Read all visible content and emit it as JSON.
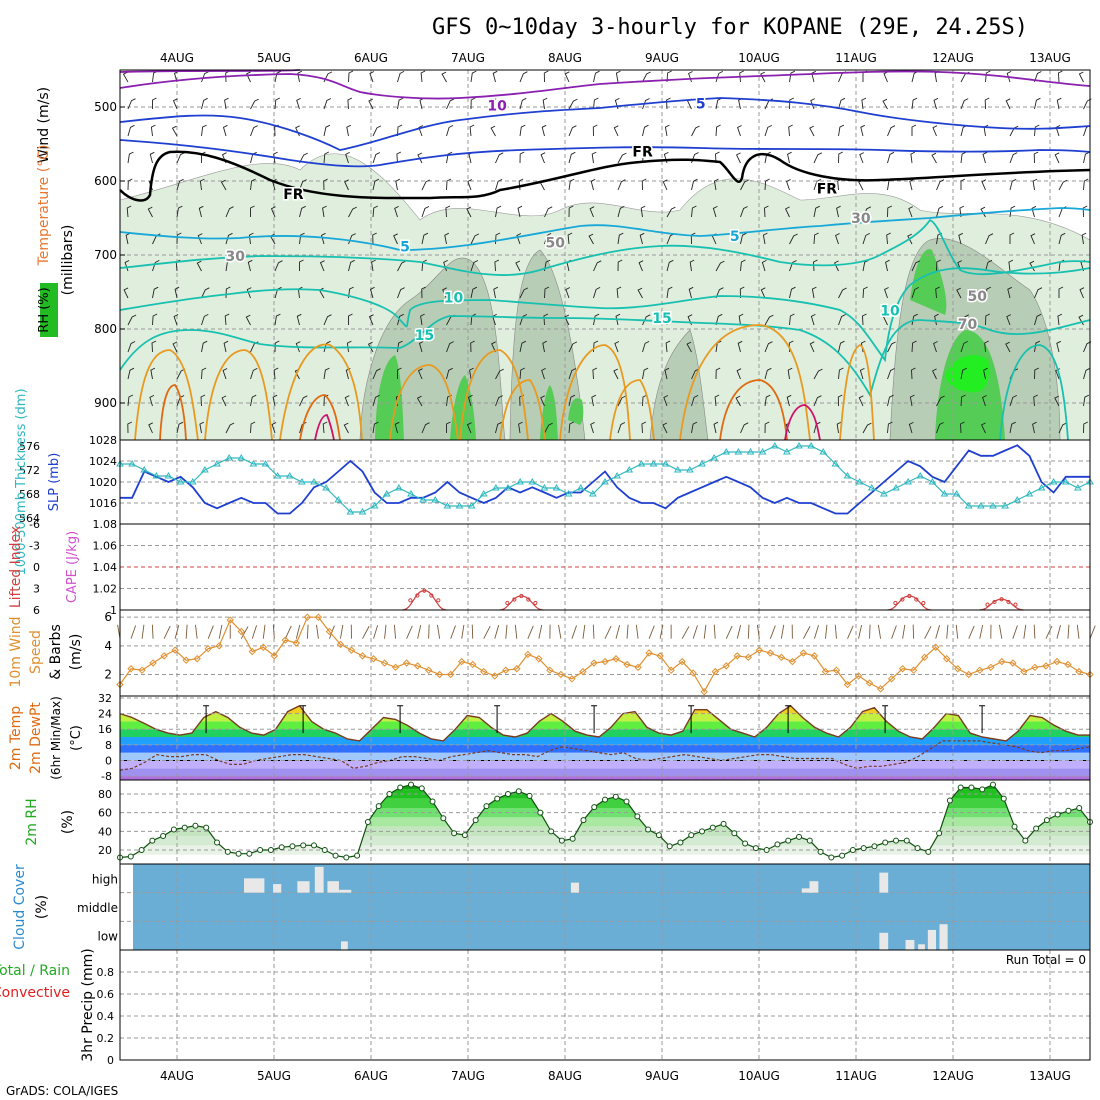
{
  "title": "GFS 0~10day 3-hourly for KOPANE (29E, 24.25S)",
  "credit": "GrADS: COLA/IGES",
  "dates": [
    "4AUG",
    "5AUG",
    "6AUG",
    "7AUG",
    "8AUG",
    "9AUG",
    "10AUG",
    "11AUG",
    "12AUG",
    "13AUG"
  ],
  "colors": {
    "purple": "#8a1fb0",
    "blue": "#1f3fd0",
    "cyan": "#18a8d8",
    "teal": "#18c0b0",
    "orange": "#e89a20",
    "darkorange": "#e06a10",
    "magenta": "#d0106a",
    "black": "#000000",
    "rh_light": "#dfeedd",
    "rh_mid": "#b8cdb6",
    "rh_green": "#55cc55",
    "rh_bright": "#22ee22",
    "slp": "#1f3fd0",
    "thick": "#30b8c0",
    "li": "#d04040",
    "cape": "#d050d0",
    "wind": "#e09030",
    "cloud_bg": "#6aaed6",
    "cloud_block": "#e8e8e8"
  },
  "chart_data": [
    {
      "panel": "upper-air",
      "type": "contour",
      "ylabel_parts": [
        {
          "text": "Wind (m/s)",
          "color": "#000000"
        },
        {
          "text": "Temperature (°C)",
          "color": "#e87830"
        },
        {
          "text": "(millibars)",
          "color": "#000000"
        },
        {
          "text": "RH (%)",
          "color": "#22aa22"
        }
      ],
      "ylevels": [
        500,
        600,
        700,
        800,
        900
      ],
      "ylim": [
        450,
        950
      ],
      "xlim": [
        0,
        10
      ],
      "contour_labels": [
        {
          "text": "10",
          "x": 3.3,
          "p": 505,
          "color": "purple"
        },
        {
          "text": "5",
          "x": 5.4,
          "p": 502,
          "color": "blue"
        },
        {
          "text": "FR",
          "x": 4.8,
          "p": 567,
          "color": "black"
        },
        {
          "text": "FR",
          "x": 1.2,
          "p": 624,
          "color": "black"
        },
        {
          "text": "FR",
          "x": 6.7,
          "p": 617,
          "color": "black"
        },
        {
          "text": "5",
          "x": 2.35,
          "p": 695,
          "color": "cyan"
        },
        {
          "text": "5",
          "x": 5.75,
          "p": 681,
          "color": "cyan"
        },
        {
          "text": "10",
          "x": 2.85,
          "p": 764,
          "color": "teal"
        },
        {
          "text": "15",
          "x": 2.55,
          "p": 815,
          "color": "teal"
        },
        {
          "text": "15",
          "x": 5.0,
          "p": 792,
          "color": "teal"
        },
        {
          "text": "10",
          "x": 7.35,
          "p": 782,
          "color": "teal"
        },
        {
          "text": "30",
          "x": 0.6,
          "p": 708,
          "color": "gray"
        },
        {
          "text": "50",
          "x": 3.9,
          "p": 690,
          "color": "gray"
        },
        {
          "text": "30",
          "x": 7.05,
          "p": 657,
          "color": "gray"
        },
        {
          "text": "50",
          "x": 8.25,
          "p": 762,
          "color": "gray"
        },
        {
          "text": "70",
          "x": 8.15,
          "p": 800,
          "color": "gray"
        }
      ]
    },
    {
      "panel": "slp-thickness",
      "type": "line",
      "left_label": "1000-500mb Thickness (dm)",
      "right_label": "SLP (mb)",
      "left_ticks": [
        564,
        568,
        572,
        576
      ],
      "right_ticks": [
        1016,
        1020,
        1024,
        1028
      ],
      "left_ylim": [
        563,
        577
      ],
      "right_ylim": [
        1012,
        1028
      ],
      "series": [
        {
          "name": "SLP",
          "axis": "right",
          "color": "slp",
          "values": [
            1017,
            1017,
            1022,
            1021,
            1020,
            1021,
            1019,
            1016,
            1015,
            1016,
            1017,
            1016,
            1016,
            1014,
            1014,
            1016,
            1019,
            1020,
            1022,
            1024,
            1022,
            1018,
            1016,
            1016,
            1017,
            1017,
            1018,
            1020,
            1018,
            1017,
            1016,
            1017,
            1019,
            1018,
            1019,
            1018,
            1017,
            1018,
            1018,
            1020,
            1022,
            1019,
            1017,
            1016,
            1016,
            1015,
            1017,
            1018,
            1019,
            1020,
            1021,
            1020,
            1019,
            1017,
            1016,
            1017,
            1016,
            1016,
            1015,
            1014,
            1014,
            1016,
            1018,
            1020,
            1022,
            1024,
            1023,
            1021,
            1020,
            1023,
            1026,
            1025,
            1025,
            1026,
            1027,
            1025,
            1020,
            1018,
            1021,
            1021,
            1021
          ]
        },
        {
          "name": "Thickness",
          "axis": "left",
          "color": "thick",
          "values": [
            573,
            573,
            572,
            571,
            571,
            570,
            570,
            572,
            573,
            574,
            574,
            573,
            573,
            571,
            571,
            570,
            570,
            569,
            567,
            565,
            565,
            566,
            568,
            569,
            568,
            567,
            567,
            566,
            566,
            566,
            568,
            569,
            569,
            570,
            570,
            569,
            569,
            568,
            569,
            568,
            570,
            571,
            572,
            573,
            573,
            573,
            572,
            572,
            573,
            574,
            575,
            575,
            575,
            575,
            576,
            575,
            576,
            576,
            575,
            573,
            571,
            570,
            569,
            568,
            569,
            570,
            571,
            570,
            568,
            568,
            566,
            566,
            566,
            566,
            567,
            568,
            569,
            570,
            570,
            569,
            570
          ]
        }
      ]
    },
    {
      "panel": "li-cape",
      "type": "line",
      "left_label": "Lifted Index",
      "right_label": "CAPE (J/kg)",
      "left_ticks": [
        "-6",
        "-3",
        "0",
        "3",
        "6"
      ],
      "right_ticks": [
        "1",
        "1.02",
        "1.04",
        "1.06",
        "1.08"
      ],
      "zero_line": 0,
      "cape_bumps": [
        {
          "center": 2.55,
          "peak": 1.018
        },
        {
          "center": 3.55,
          "peak": 1.013
        },
        {
          "center": 7.55,
          "peak": 1.013
        },
        {
          "center": 8.5,
          "peak": 1.01
        }
      ]
    },
    {
      "panel": "wind10m",
      "type": "line",
      "label": "10m Wind Speed & Barbs (m/s)",
      "ticks": [
        2,
        4,
        6
      ],
      "ylim": [
        0.5,
        6.5
      ],
      "values": [
        1.3,
        2.4,
        2.3,
        2.8,
        3.3,
        3.7,
        3.0,
        3.1,
        3.8,
        4.0,
        5.8,
        5.0,
        3.6,
        3.9,
        3.3,
        4.4,
        4.2,
        6.0,
        6.0,
        5.0,
        4.1,
        3.7,
        3.3,
        3.1,
        2.8,
        2.5,
        2.8,
        2.6,
        2.3,
        2.0,
        2.0,
        2.9,
        2.7,
        2.2,
        1.9,
        2.3,
        2.4,
        3.4,
        3.1,
        2.3,
        2.0,
        1.7,
        2.2,
        2.8,
        2.9,
        3.1,
        2.7,
        2.5,
        3.5,
        3.3,
        2.3,
        2.9,
        2.1,
        0.8,
        2.2,
        2.6,
        3.3,
        3.2,
        3.7,
        3.5,
        3.2,
        2.9,
        3.5,
        3.3,
        2.2,
        2.3,
        1.3,
        1.9,
        1.4,
        1.0,
        1.7,
        2.4,
        2.3,
        3.2,
        3.9,
        3.1,
        2.4,
        2.0,
        2.3,
        2.5,
        2.9,
        2.8,
        2.2,
        2.5,
        2.6,
        2.9,
        2.7,
        2.2,
        2.0
      ]
    },
    {
      "panel": "temp2m",
      "type": "area",
      "label": "2m Temp 2m DewPt (6hr Min/Max) (°C)",
      "ticks": [
        -8,
        0,
        8,
        16,
        24,
        32
      ],
      "ylim": [
        -10,
        33
      ],
      "temp": [
        24,
        22,
        19,
        16,
        14,
        13,
        14,
        22,
        25,
        22,
        17,
        14,
        13,
        16,
        25,
        28,
        20,
        16,
        14,
        11,
        10,
        16,
        22,
        21,
        18,
        14,
        11,
        10,
        16,
        23,
        22,
        17,
        13,
        12,
        14,
        20,
        24,
        20,
        15,
        13,
        12,
        17,
        24,
        25,
        17,
        14,
        13,
        15,
        26,
        26,
        21,
        16,
        14,
        12,
        17,
        24,
        28,
        22,
        17,
        14,
        12,
        17,
        25,
        27,
        20,
        15,
        12,
        11,
        17,
        24,
        23,
        14,
        12,
        11,
        10,
        15,
        23,
        22,
        18,
        15,
        13,
        13
      ],
      "dewpt": [
        -5,
        -4,
        -1,
        3,
        2,
        2,
        3,
        3,
        0,
        -2,
        -2,
        0,
        1,
        2,
        3,
        3,
        2,
        1,
        0,
        -4,
        -3,
        -1,
        0,
        2,
        2,
        1,
        0,
        2,
        3,
        4,
        5,
        4,
        3,
        3,
        2,
        5,
        7,
        6,
        5,
        4,
        3,
        4,
        1,
        0,
        1,
        2,
        3,
        2,
        1,
        0,
        1,
        2,
        3,
        3,
        2,
        1,
        1,
        1,
        1,
        -2,
        -4,
        -3,
        -3,
        -2,
        -1,
        2,
        6,
        10,
        10,
        10,
        10,
        9,
        8,
        7,
        5,
        4,
        5,
        5,
        6,
        7
      ]
    },
    {
      "panel": "rh2m",
      "type": "area",
      "label": "2m RH (%)",
      "ticks": [
        20,
        40,
        60,
        80
      ],
      "ylim": [
        5,
        95
      ],
      "values": [
        12,
        13,
        20,
        30,
        35,
        42,
        44,
        46,
        44,
        28,
        18,
        16,
        16,
        20,
        20,
        23,
        24,
        25,
        25,
        20,
        14,
        12,
        14,
        50,
        67,
        80,
        87,
        90,
        86,
        72,
        54,
        38,
        36,
        52,
        67,
        75,
        80,
        83,
        78,
        60,
        40,
        30,
        32,
        52,
        66,
        74,
        77,
        72,
        56,
        42,
        36,
        24,
        28,
        36,
        40,
        44,
        48,
        38,
        27,
        22,
        20,
        26,
        30,
        34,
        30,
        18,
        12,
        14,
        20,
        22,
        24,
        28,
        30,
        30,
        22,
        18,
        38,
        73,
        87,
        87,
        85,
        90,
        75,
        45,
        30,
        43,
        52,
        58,
        62,
        65,
        50
      ]
    },
    {
      "panel": "cloud",
      "type": "bar",
      "label": "Cloud Cover (%)",
      "rows": [
        "high",
        "middle",
        "low"
      ],
      "blocks": [
        {
          "row": "high",
          "x": 1.0,
          "w": 0.3,
          "h": 0.5
        },
        {
          "row": "high",
          "x": 1.55,
          "w": 0.18,
          "h": 0.4
        },
        {
          "row": "high",
          "x": 1.73,
          "w": 0.13,
          "h": 0.9
        },
        {
          "row": "high",
          "x": 1.86,
          "w": 0.17,
          "h": 0.4
        },
        {
          "row": "high",
          "x": 1.98,
          "w": 0.18,
          "h": 0.1
        },
        {
          "row": "high",
          "x": 1.3,
          "w": 0.12,
          "h": 0.3
        },
        {
          "row": "high",
          "x": 4.37,
          "w": 0.12,
          "h": 0.35
        },
        {
          "row": "high",
          "x": 6.75,
          "w": 0.17,
          "h": 0.15
        },
        {
          "row": "high",
          "x": 6.83,
          "w": 0.13,
          "h": 0.4
        },
        {
          "row": "high",
          "x": 7.55,
          "w": 0.13,
          "h": 0.7
        },
        {
          "row": "low",
          "x": 2.0,
          "w": 0.1,
          "h": 0.3
        },
        {
          "row": "low",
          "x": 7.55,
          "w": 0.13,
          "h": 0.6
        },
        {
          "row": "low",
          "x": 7.82,
          "w": 0.13,
          "h": 0.35
        },
        {
          "row": "low",
          "x": 7.95,
          "w": 0.1,
          "h": 0.2
        },
        {
          "row": "low",
          "x": 8.05,
          "w": 0.12,
          "h": 0.7
        },
        {
          "row": "low",
          "x": 8.17,
          "w": 0.12,
          "h": 0.9
        }
      ]
    },
    {
      "panel": "precip",
      "type": "bar",
      "left_label_total": "Total / Rain",
      "left_label_conv": "Convective",
      "label": "3hr Precip (mm)",
      "ticks": [
        "0",
        "0.2",
        "0.4",
        "0.6",
        "0.8"
      ],
      "ylim": [
        0,
        1
      ],
      "run_total": "Run Total = 0",
      "values": []
    }
  ]
}
